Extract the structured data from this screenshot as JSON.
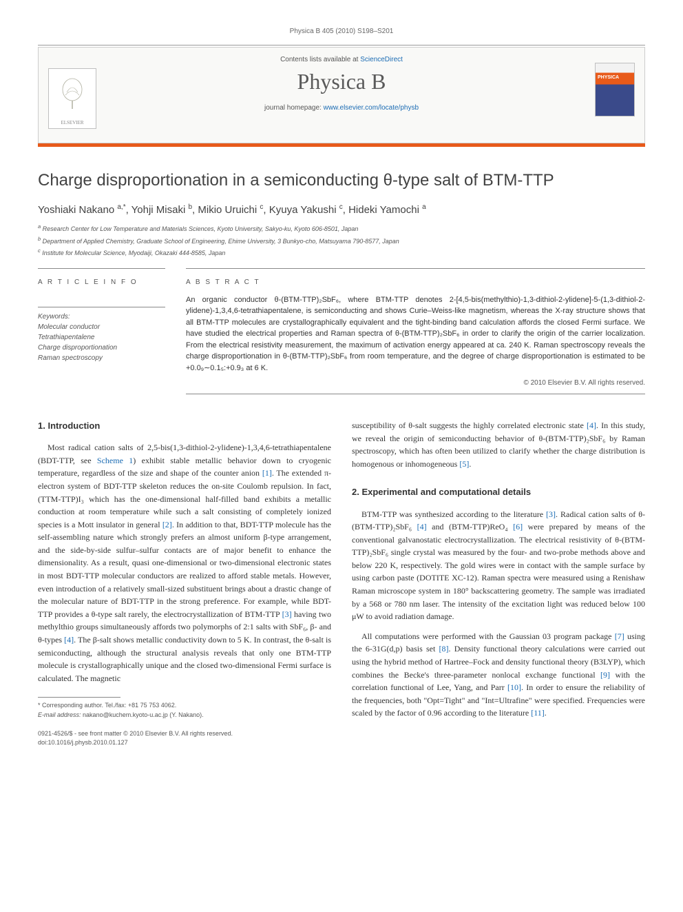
{
  "running_header": "Physica B 405 (2010) S198–S201",
  "masthead": {
    "contents_text_prefix": "Contents lists available at ",
    "contents_link": "ScienceDirect",
    "journal_name": "Physica B",
    "homepage_text_prefix": "journal homepage: ",
    "homepage_link": "www.elsevier.com/locate/physb",
    "publisher_logo_text": "ELSEVIER",
    "cover_label": "PHYSICA"
  },
  "title": "Charge disproportionation in a semiconducting θ-type salt of BTM-TTP",
  "authors_html": "Yoshiaki Nakano <sup>a,*</sup>, Yohji Misaki <sup>b</sup>, Mikio Uruichi <sup>c</sup>, Kyuya Yakushi <sup>c</sup>, Hideki Yamochi <sup>a</sup>",
  "affiliations": [
    "a Research Center for Low Temperature and Materials Sciences, Kyoto University, Sakyo-ku, Kyoto 606-8501, Japan",
    "b Department of Applied Chemistry, Graduate School of Engineering, Ehime University, 3 Bunkyo-cho, Matsuyama 790-8577, Japan",
    "c Institute for Molecular Science, Myodaiji, Okazaki 444-8585, Japan"
  ],
  "info": {
    "heading": "A R T I C L E   I N F O",
    "keywords_label": "Keywords:",
    "keywords": [
      "Molecular conductor",
      "Tetrathiapentalene",
      "Charge disproportionation",
      "Raman spectroscopy"
    ]
  },
  "abstract": {
    "heading": "A B S T R A C T",
    "text": "An organic conductor θ-(BTM-TTP)₂SbF₆, where BTM-TTP denotes 2-[4,5-bis(methylthio)-1,3-dithiol-2-ylidene]-5-(1,3-dithiol-2-ylidene)-1,3,4,6-tetrathiapentalene, is semiconducting and shows Curie–Weiss-like magnetism, whereas the X-ray structure shows that all BTM-TTP molecules are crystallographically equivalent and the tight-binding band calculation affords the closed Fermi surface. We have studied the electrical properties and Raman spectra of θ-(BTM-TTP)₂SbF₆ in order to clarify the origin of the carrier localization. From the electrical resistivity measurement, the maximum of activation energy appeared at ca. 240 K. Raman spectroscopy reveals the charge disproportionation in θ-(BTM-TTP)₂SbF₆ from room temperature, and the degree of charge disproportionation is estimated to be +0.0₉∼0.1₅:+0.9₃ at 6 K.",
    "copyright": "© 2010 Elsevier B.V. All rights reserved."
  },
  "sections": {
    "intro_heading": "1.  Introduction",
    "intro_p1": "Most radical cation salts of 2,5-bis(1,3-dithiol-2-ylidene)-1,3,4,6-tetrathiapentalene (BDT-TTP, see Scheme 1) exhibit stable metallic behavior down to cryogenic temperature, regardless of the size and shape of the counter anion [1]. The extended π-electron system of BDT-TTP skeleton reduces the on-site Coulomb repulsion. In fact, (TTM-TTP)I₃ which has the one-dimensional half-filled band exhibits a metallic conduction at room temperature while such a salt consisting of completely ionized species is a Mott insulator in general [2]. In addition to that, BDT-TTP molecule has the self-assembling nature which strongly prefers an almost uniform β-type arrangement, and the side-by-side sulfur–sulfur contacts are of major benefit to enhance the dimensionality. As a result, quasi one-dimensional or two-dimensional electronic states in most BDT-TTP molecular conductors are realized to afford stable metals. However, even introduction of a relatively small-sized substituent brings about a drastic change of the molecular nature of BDT-TTP in the strong preference. For example, while BDT-TTP provides a θ-type salt rarely, the electrocrystallization of BTM-TTP [3] having two methylthio groups simultaneously affords two polymorphs of 2:1 salts with SbF₆, β- and θ-types [4]. The β-salt shows metallic conductivity down to 5 K. In contrast, the θ-salt is semiconducting, although the structural analysis reveals that only one BTM-TTP molecule is crystallographically unique and the closed two-dimensional Fermi surface is calculated. The magnetic",
    "intro_p2": "susceptibility of θ-salt suggests the highly correlated electronic state [4]. In this study, we reveal the origin of semiconducting behavior of θ-(BTM-TTP)₂SbF₆ by Raman spectroscopy, which has often been utilized to clarify whether the charge distribution is homogenous or inhomogeneous [5].",
    "exp_heading": "2.  Experimental and computational details",
    "exp_p1": "BTM-TTP was synthesized according to the literature [3]. Radical cation salts of θ-(BTM-TTP)₂SbF₆ [4] and (BTM-TTP)ReO₄ [6] were prepared by means of the conventional galvanostatic electrocrystallization. The electrical resistivity of θ-(BTM-TTP)₂SbF₆ single crystal was measured by the four- and two-probe methods above and below 220 K, respectively. The gold wires were in contact with the sample surface by using carbon paste (DOTITE XC-12). Raman spectra were measured using a Renishaw Raman microscope system in 180° backscattering geometry. The sample was irradiated by a 568 or 780 nm laser. The intensity of the excitation light was reduced below 100 μW to avoid radiation damage.",
    "exp_p2": "All computations were performed with the Gaussian 03 program package [7] using the 6-31G(d,p) basis set [8]. Density functional theory calculations were carried out using the hybrid method of Hartree–Fock and density functional theory (B3LYP), which combines the Becke's three-parameter nonlocal exchange functional [9] with the correlation functional of Lee, Yang, and Parr [10]. In order to ensure the reliability of the frequencies, both \"Opt=Tight\" and \"Int=Ultrafine\" were specified. Frequencies were scaled by the factor of 0.96 according to the literature [11]."
  },
  "footnote": {
    "corresponding": "* Corresponding author. Tel./fax: +81 75 753 4062.",
    "email_label": "E-mail address:",
    "email": "nakano@kuchem.kyoto-u.ac.jp (Y. Nakano)."
  },
  "footer": {
    "line1": "0921-4526/$ - see front matter © 2010 Elsevier B.V. All rights reserved.",
    "line2": "doi:10.1016/j.physb.2010.01.127"
  },
  "colors": {
    "accent_orange": "#e85a1a",
    "link_blue": "#1a6bb3",
    "text": "#333333",
    "muted": "#555555",
    "rule": "#888888",
    "masthead_bg": "#f9f9f7"
  },
  "typography": {
    "title_fontsize_pt": 18,
    "journal_name_fontsize_pt": 24,
    "body_fontsize_pt": 9,
    "abstract_fontsize_pt": 8.5,
    "affil_fontsize_pt": 7
  }
}
